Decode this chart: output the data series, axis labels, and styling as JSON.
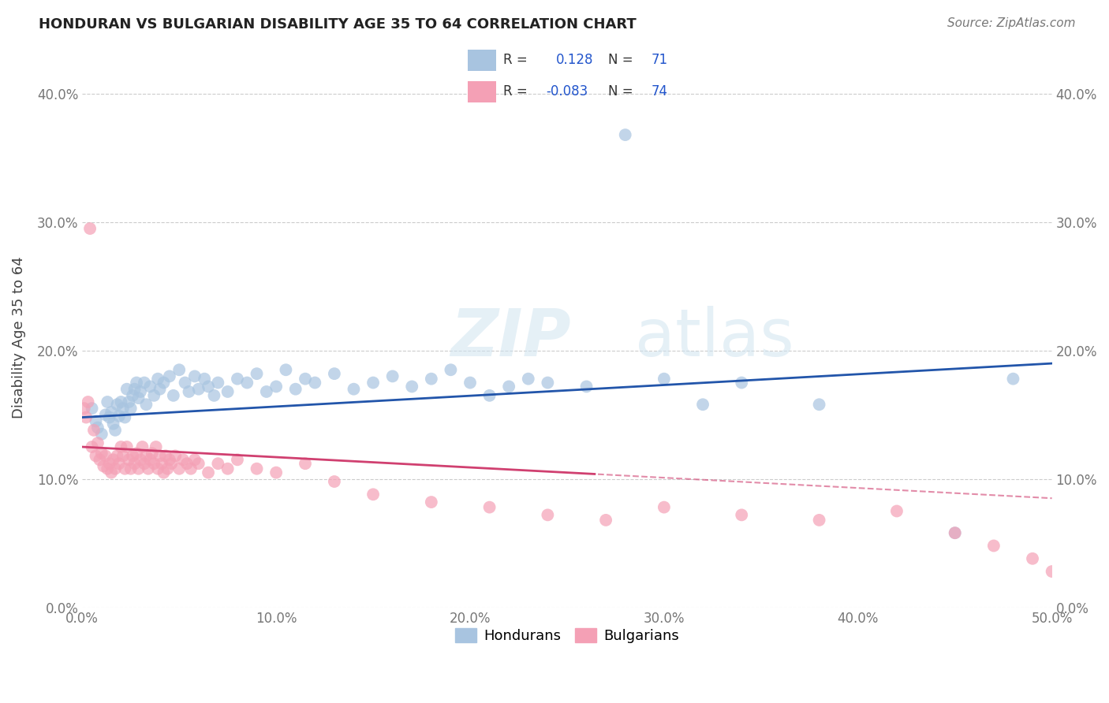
{
  "title": "HONDURAN VS BULGARIAN DISABILITY AGE 35 TO 64 CORRELATION CHART",
  "source_text": "Source: ZipAtlas.com",
  "ylabel": "Disability Age 35 to 64",
  "xlim": [
    0.0,
    0.5
  ],
  "ylim": [
    0.0,
    0.42
  ],
  "honduran_color": "#a8c4e0",
  "bulgarian_color": "#f4a0b5",
  "honduran_line_color": "#2255aa",
  "bulgarian_line_color": "#d04070",
  "R_honduran": 0.128,
  "N_honduran": 71,
  "R_bulgarian": -0.083,
  "N_bulgarian": 74,
  "legend_text_color": "#2255cc",
  "grid_color": "#cccccc",
  "honduran_x": [
    0.005,
    0.007,
    0.008,
    0.01,
    0.012,
    0.013,
    0.014,
    0.015,
    0.016,
    0.017,
    0.018,
    0.019,
    0.02,
    0.021,
    0.022,
    0.023,
    0.024,
    0.025,
    0.026,
    0.027,
    0.028,
    0.029,
    0.03,
    0.032,
    0.033,
    0.035,
    0.037,
    0.039,
    0.04,
    0.042,
    0.045,
    0.047,
    0.05,
    0.053,
    0.055,
    0.058,
    0.06,
    0.063,
    0.065,
    0.068,
    0.07,
    0.075,
    0.08,
    0.085,
    0.09,
    0.095,
    0.1,
    0.105,
    0.11,
    0.115,
    0.12,
    0.13,
    0.14,
    0.15,
    0.16,
    0.17,
    0.18,
    0.19,
    0.2,
    0.21,
    0.22,
    0.23,
    0.24,
    0.26,
    0.28,
    0.3,
    0.32,
    0.34,
    0.38,
    0.45,
    0.48
  ],
  "honduran_y": [
    0.155,
    0.145,
    0.14,
    0.135,
    0.15,
    0.16,
    0.148,
    0.152,
    0.143,
    0.138,
    0.158,
    0.149,
    0.16,
    0.155,
    0.148,
    0.17,
    0.16,
    0.155,
    0.165,
    0.17,
    0.175,
    0.163,
    0.168,
    0.175,
    0.158,
    0.172,
    0.165,
    0.178,
    0.17,
    0.175,
    0.18,
    0.165,
    0.185,
    0.175,
    0.168,
    0.18,
    0.17,
    0.178,
    0.172,
    0.165,
    0.175,
    0.168,
    0.178,
    0.175,
    0.182,
    0.168,
    0.172,
    0.185,
    0.17,
    0.178,
    0.175,
    0.182,
    0.17,
    0.175,
    0.18,
    0.172,
    0.178,
    0.185,
    0.175,
    0.165,
    0.172,
    0.178,
    0.175,
    0.172,
    0.368,
    0.178,
    0.158,
    0.175,
    0.158,
    0.058,
    0.178
  ],
  "bulgarian_x": [
    0.001,
    0.002,
    0.003,
    0.004,
    0.005,
    0.006,
    0.007,
    0.008,
    0.009,
    0.01,
    0.011,
    0.012,
    0.013,
    0.014,
    0.015,
    0.016,
    0.017,
    0.018,
    0.019,
    0.02,
    0.021,
    0.022,
    0.023,
    0.024,
    0.025,
    0.026,
    0.027,
    0.028,
    0.029,
    0.03,
    0.031,
    0.032,
    0.033,
    0.034,
    0.035,
    0.036,
    0.037,
    0.038,
    0.039,
    0.04,
    0.041,
    0.042,
    0.043,
    0.044,
    0.045,
    0.046,
    0.048,
    0.05,
    0.052,
    0.054,
    0.056,
    0.058,
    0.06,
    0.065,
    0.07,
    0.075,
    0.08,
    0.09,
    0.1,
    0.115,
    0.13,
    0.15,
    0.18,
    0.21,
    0.24,
    0.27,
    0.3,
    0.34,
    0.38,
    0.42,
    0.45,
    0.47,
    0.49,
    0.5
  ],
  "bulgarian_y": [
    0.155,
    0.148,
    0.16,
    0.295,
    0.125,
    0.138,
    0.118,
    0.128,
    0.115,
    0.12,
    0.11,
    0.118,
    0.108,
    0.112,
    0.105,
    0.115,
    0.108,
    0.118,
    0.112,
    0.125,
    0.118,
    0.108,
    0.125,
    0.115,
    0.108,
    0.118,
    0.112,
    0.12,
    0.108,
    0.115,
    0.125,
    0.112,
    0.118,
    0.108,
    0.115,
    0.12,
    0.112,
    0.125,
    0.108,
    0.118,
    0.112,
    0.105,
    0.118,
    0.108,
    0.115,
    0.112,
    0.118,
    0.108,
    0.115,
    0.112,
    0.108,
    0.115,
    0.112,
    0.105,
    0.112,
    0.108,
    0.115,
    0.108,
    0.105,
    0.112,
    0.098,
    0.088,
    0.082,
    0.078,
    0.072,
    0.068,
    0.078,
    0.072,
    0.068,
    0.075,
    0.058,
    0.048,
    0.038,
    0.028
  ]
}
